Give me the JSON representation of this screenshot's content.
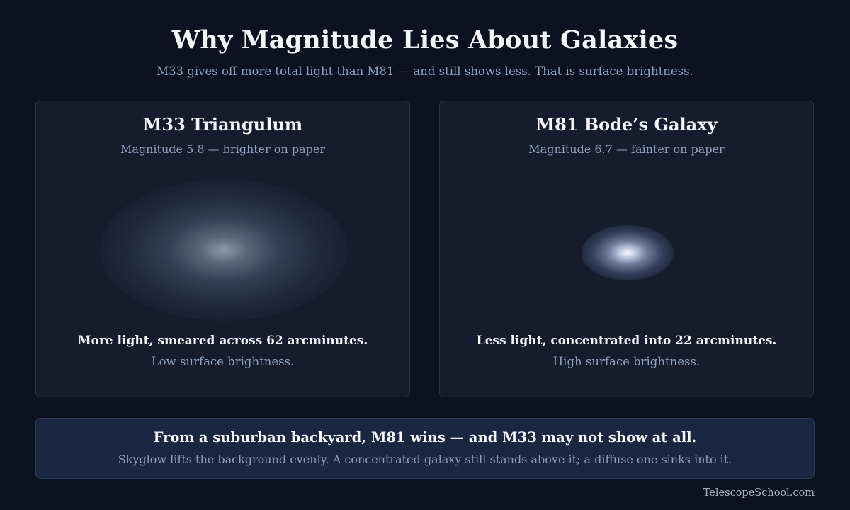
{
  "header": {
    "title": "Why Magnitude Lies About Galaxies",
    "subtitle": "M33 gives off more total light than M81 — and still shows less. That is surface brightness."
  },
  "cards": [
    {
      "title": "M33 Triangulum",
      "magnitude": "Magnitude 5.8 — brighter on paper",
      "summary": "More light, smeared across 62 arcminutes.",
      "note": "Low surface brightness."
    },
    {
      "title": "M81 Bode’s Galaxy",
      "magnitude": "Magnitude 6.7 — fainter on paper",
      "summary": "Less light, concentrated into 22 arcminutes.",
      "note": "High surface brightness."
    }
  ],
  "banner": {
    "headline": "From a suburban backyard, M81 wins — and M33 may not show at all.",
    "body": "Skyglow lifts the background evenly. A concentrated galaxy still stands above it; a diffuse one sinks into it."
  },
  "footer": {
    "credit": "TelescopeSchool.com"
  },
  "colors": {
    "background": "#0c1220",
    "card": "#141c2e",
    "banner": "#1b2740",
    "muted_text": "#8ea0bd"
  }
}
